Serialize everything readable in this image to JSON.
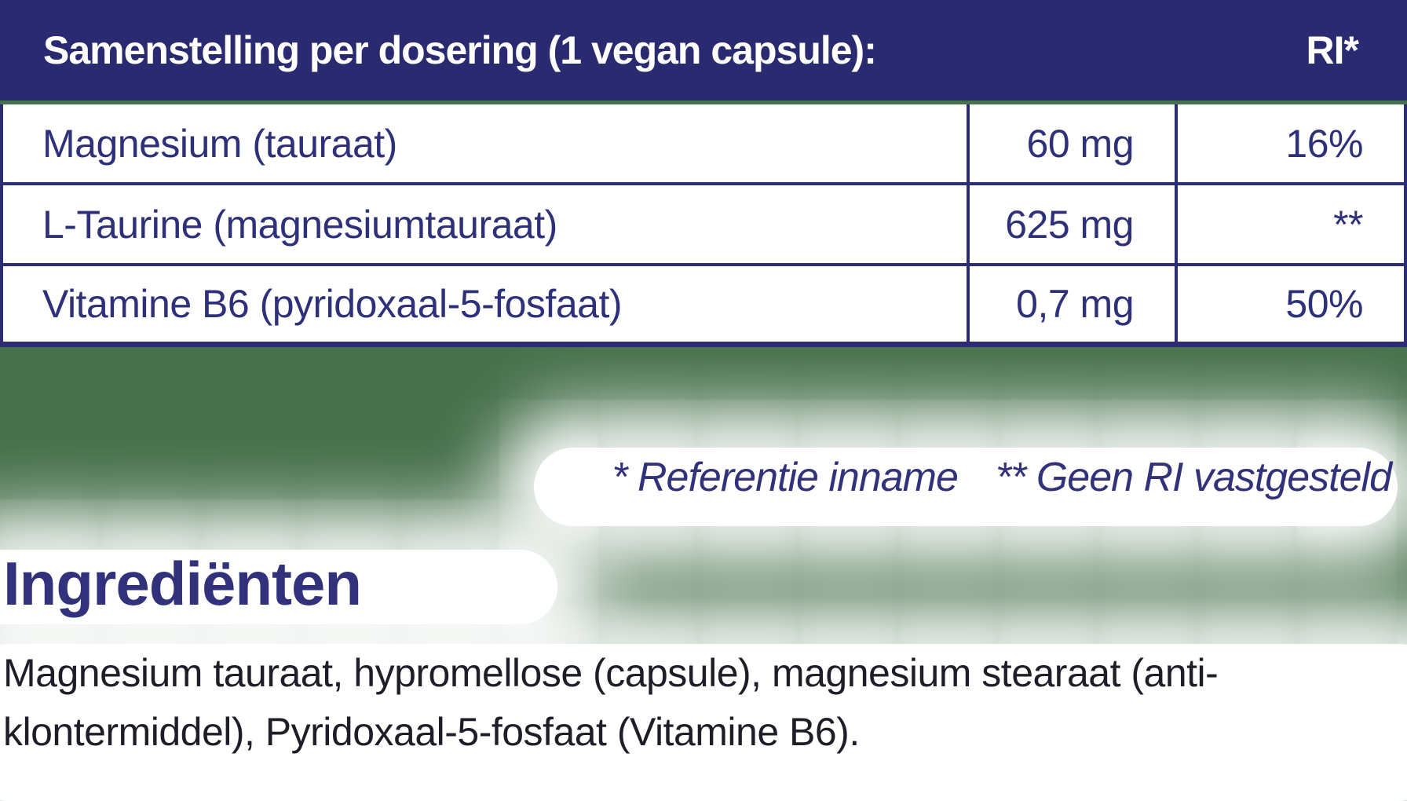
{
  "colors": {
    "navy_header": "#2A2A71",
    "table_border": "#2B2C72",
    "table_text": "#2E3179",
    "footnote_text": "#32327B",
    "heading_text": "#31327B",
    "paragraph_text": "#1E1E28",
    "background_green": "#47714C",
    "glow_white": "#FFFFFF"
  },
  "supplement_table": {
    "header": {
      "title": "Samenstelling per dosering (1 vegan capsule):",
      "ri_column_label": "RI*"
    },
    "rows": [
      {
        "ingredient": "Magnesium (tauraat)",
        "amount": "60 mg",
        "ri": "16%"
      },
      {
        "ingredient": "L-Taurine (magnesiumtauraat)",
        "amount": "625 mg",
        "ri": "**"
      },
      {
        "ingredient": "Vitamine B6 (pyridoxaal-5-fosfaat)",
        "amount": "0,7 mg",
        "ri": "50%"
      }
    ]
  },
  "footnotes": {
    "reference_intake": "* Referentie inname",
    "no_ri_established": "** Geen RI vastgesteld"
  },
  "ingredients_section": {
    "heading": "Ingrediënten",
    "text": "Magnesium tauraat, hypromellose (capsule), magnesium stearaat (anti-klontermiddel), Pyridoxaal-5-fosfaat (Vitamine B6)."
  }
}
